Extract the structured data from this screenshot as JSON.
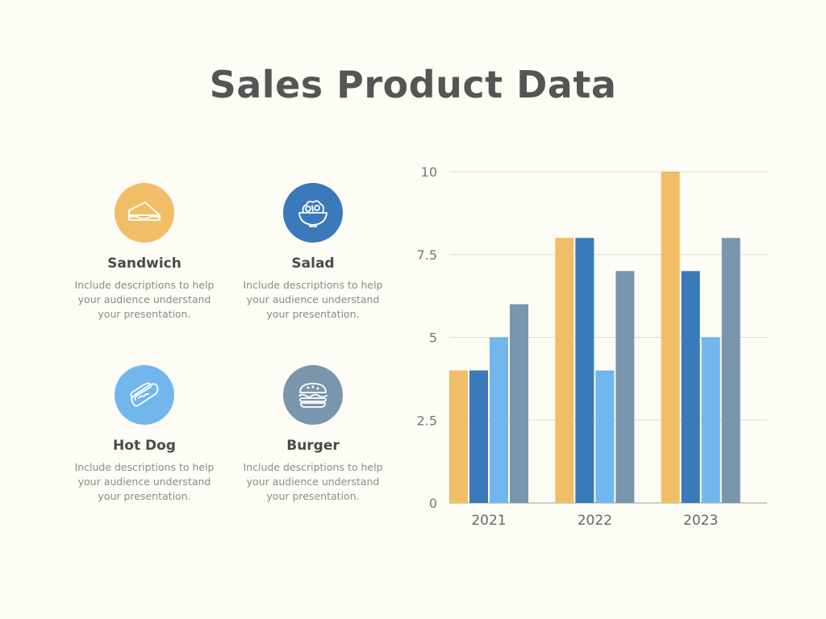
{
  "title": "Sales Product Data",
  "products": [
    {
      "name": "Sandwich",
      "description": "Include descriptions to help your audience understand your presentation.",
      "icon": "sandwich-icon",
      "color": "#f2bd67"
    },
    {
      "name": "Salad",
      "description": "Include descriptions to help your audience understand your presentation.",
      "icon": "salad-bowl-icon",
      "color": "#3a79ba"
    },
    {
      "name": "Hot Dog",
      "description": "Include descriptions to help your audience understand your presentation.",
      "icon": "hot-dog-icon",
      "color": "#72b6ee"
    },
    {
      "name": "Burger",
      "description": "Include descriptions to help your audience understand your presentation.",
      "icon": "burger-icon",
      "color": "#7a96ad"
    }
  ],
  "chart_data": {
    "type": "bar",
    "title": "",
    "xlabel": "",
    "ylabel": "",
    "categories": [
      "2021",
      "2022",
      "2023"
    ],
    "ylim": [
      0,
      10
    ],
    "yticks": [
      "0",
      "2.5",
      "5",
      "7.5",
      "10"
    ],
    "grid": true,
    "legend": "none",
    "series": [
      {
        "values": [
          4,
          8,
          10
        ],
        "color": "#f2bd67"
      },
      {
        "values": [
          4,
          8,
          7
        ],
        "color": "#3a79ba"
      },
      {
        "values": [
          5,
          4,
          5
        ],
        "color": "#72b6ee"
      },
      {
        "values": [
          6,
          7,
          8
        ],
        "color": "#7a96ad"
      }
    ]
  }
}
